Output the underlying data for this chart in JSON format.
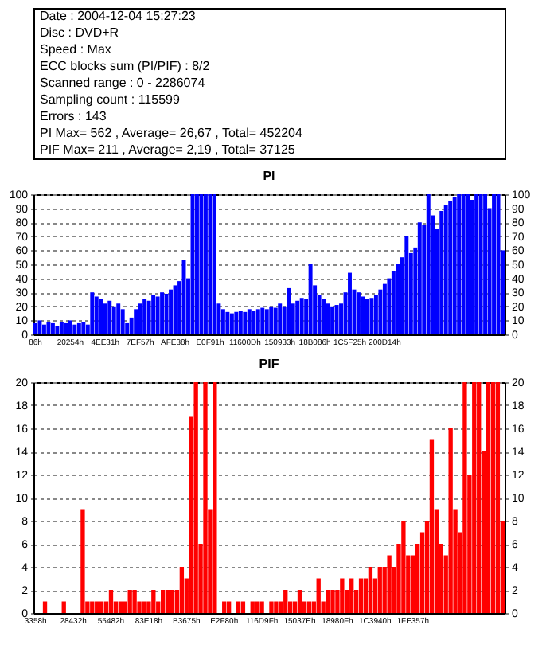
{
  "chart_data": [
    {
      "type": "other",
      "annotations": [
        "Date : 2004-12-04 15:27:23",
        "Disc : DVD+R",
        "Speed : Max",
        "ECC blocks sum (PI/PIF) : 8/2",
        "Scanned range : 0 - 2286074",
        "Sampling count : 115599",
        "Errors : 143",
        "PI Max= 562 , Average= 26,67 , Total= 452204",
        "PIF Max= 211 , Average= 2,19 , Total= 37125"
      ]
    },
    {
      "type": "bar",
      "title": "PI",
      "color": "#0000ff",
      "grid": "y",
      "categories": [
        "86h",
        null,
        null,
        null,
        null,
        null,
        null,
        null,
        "20254h",
        null,
        null,
        null,
        null,
        null,
        null,
        null,
        "4EE31h",
        null,
        null,
        null,
        null,
        null,
        null,
        null,
        "7EF57h",
        null,
        null,
        null,
        null,
        null,
        null,
        null,
        "AFE38h",
        null,
        null,
        null,
        null,
        null,
        null,
        null,
        "E0F91h",
        null,
        null,
        null,
        null,
        null,
        null,
        null,
        "11600Dh",
        null,
        null,
        null,
        null,
        null,
        null,
        null,
        "150933h",
        null,
        null,
        null,
        null,
        null,
        null,
        null,
        "18B086h",
        null,
        null,
        null,
        null,
        null,
        null,
        null,
        "1C5F25h",
        null,
        null,
        null,
        null,
        null,
        null,
        null,
        "200D14h",
        null,
        null,
        null,
        null,
        null,
        null,
        null,
        null,
        null,
        null,
        null,
        null,
        null,
        null,
        null,
        null,
        null,
        null,
        null,
        null,
        null,
        null,
        null,
        null,
        null,
        null,
        null
      ],
      "values": [
        8,
        10,
        7,
        9,
        8,
        6,
        9,
        8,
        10,
        7,
        8,
        9,
        7,
        30,
        27,
        25,
        22,
        24,
        20,
        22,
        18,
        8,
        12,
        18,
        22,
        25,
        24,
        28,
        27,
        30,
        29,
        32,
        35,
        38,
        53,
        40,
        100,
        100,
        100,
        100,
        100,
        100,
        22,
        18,
        16,
        15,
        16,
        17,
        16,
        18,
        17,
        18,
        19,
        18,
        20,
        19,
        22,
        20,
        33,
        22,
        24,
        26,
        25,
        50,
        35,
        28,
        25,
        22,
        20,
        21,
        22,
        30,
        44,
        32,
        30,
        27,
        25,
        26,
        28,
        32,
        36,
        40,
        45,
        50,
        55,
        70,
        58,
        62,
        80,
        78,
        100,
        85,
        75,
        88,
        92,
        95,
        98,
        100,
        100,
        100,
        96,
        100,
        100,
        100,
        90,
        100,
        100,
        60
      ],
      "ylim": [
        0,
        100
      ],
      "yticks": [
        0,
        10,
        20,
        30,
        40,
        50,
        60,
        70,
        80,
        90,
        100
      ],
      "y2lim": [
        0,
        100
      ],
      "y2ticks": [
        0,
        10,
        20,
        30,
        40,
        50,
        60,
        70,
        80,
        90,
        100
      ]
    },
    {
      "type": "bar",
      "title": "PIF",
      "color": "#ff0000",
      "grid": "y",
      "categories": [
        "3358h",
        null,
        null,
        null,
        null,
        null,
        null,
        null,
        "28432h",
        null,
        null,
        null,
        null,
        null,
        null,
        null,
        "55482h",
        null,
        null,
        null,
        null,
        null,
        null,
        null,
        "83E18h",
        null,
        null,
        null,
        null,
        null,
        null,
        null,
        "B3675h",
        null,
        null,
        null,
        null,
        null,
        null,
        null,
        "E2F80h",
        null,
        null,
        null,
        null,
        null,
        null,
        null,
        "116D9Fh",
        null,
        null,
        null,
        null,
        null,
        null,
        null,
        "15037Eh",
        null,
        null,
        null,
        null,
        null,
        null,
        null,
        "18980Fh",
        null,
        null,
        null,
        null,
        null,
        null,
        null,
        "1C3940h",
        null,
        null,
        null,
        null,
        null,
        null,
        null,
        "1FE357h",
        null,
        null,
        null,
        null,
        null,
        null,
        null,
        null,
        null,
        null,
        null,
        null,
        null,
        null,
        null,
        null,
        null,
        null,
        null
      ],
      "values": [
        0,
        0,
        1,
        0,
        0,
        0,
        1,
        0,
        0,
        0,
        9,
        1,
        1,
        1,
        1,
        1,
        2,
        1,
        1,
        1,
        2,
        2,
        1,
        1,
        1,
        2,
        1,
        2,
        2,
        2,
        2,
        4,
        3,
        17,
        20,
        6,
        20,
        9,
        20,
        0,
        1,
        1,
        0,
        1,
        1,
        0,
        1,
        1,
        1,
        0,
        1,
        1,
        1,
        2,
        1,
        1,
        2,
        1,
        1,
        1,
        3,
        1,
        2,
        2,
        2,
        3,
        2,
        3,
        2,
        3,
        3,
        4,
        3,
        4,
        4,
        5,
        4,
        6,
        8,
        5,
        5,
        6,
        7,
        8,
        15,
        9,
        6,
        5,
        16,
        9,
        7,
        20,
        12,
        20,
        20,
        14,
        20,
        20,
        20,
        8
      ],
      "ylim": [
        0,
        20
      ],
      "yticks": [
        0,
        2,
        4,
        6,
        8,
        10,
        12,
        14,
        16,
        18,
        20
      ],
      "y2lim": [
        0,
        20
      ],
      "y2ticks": [
        0,
        2,
        4,
        6,
        8,
        10,
        12,
        14,
        16,
        18,
        20
      ]
    }
  ]
}
